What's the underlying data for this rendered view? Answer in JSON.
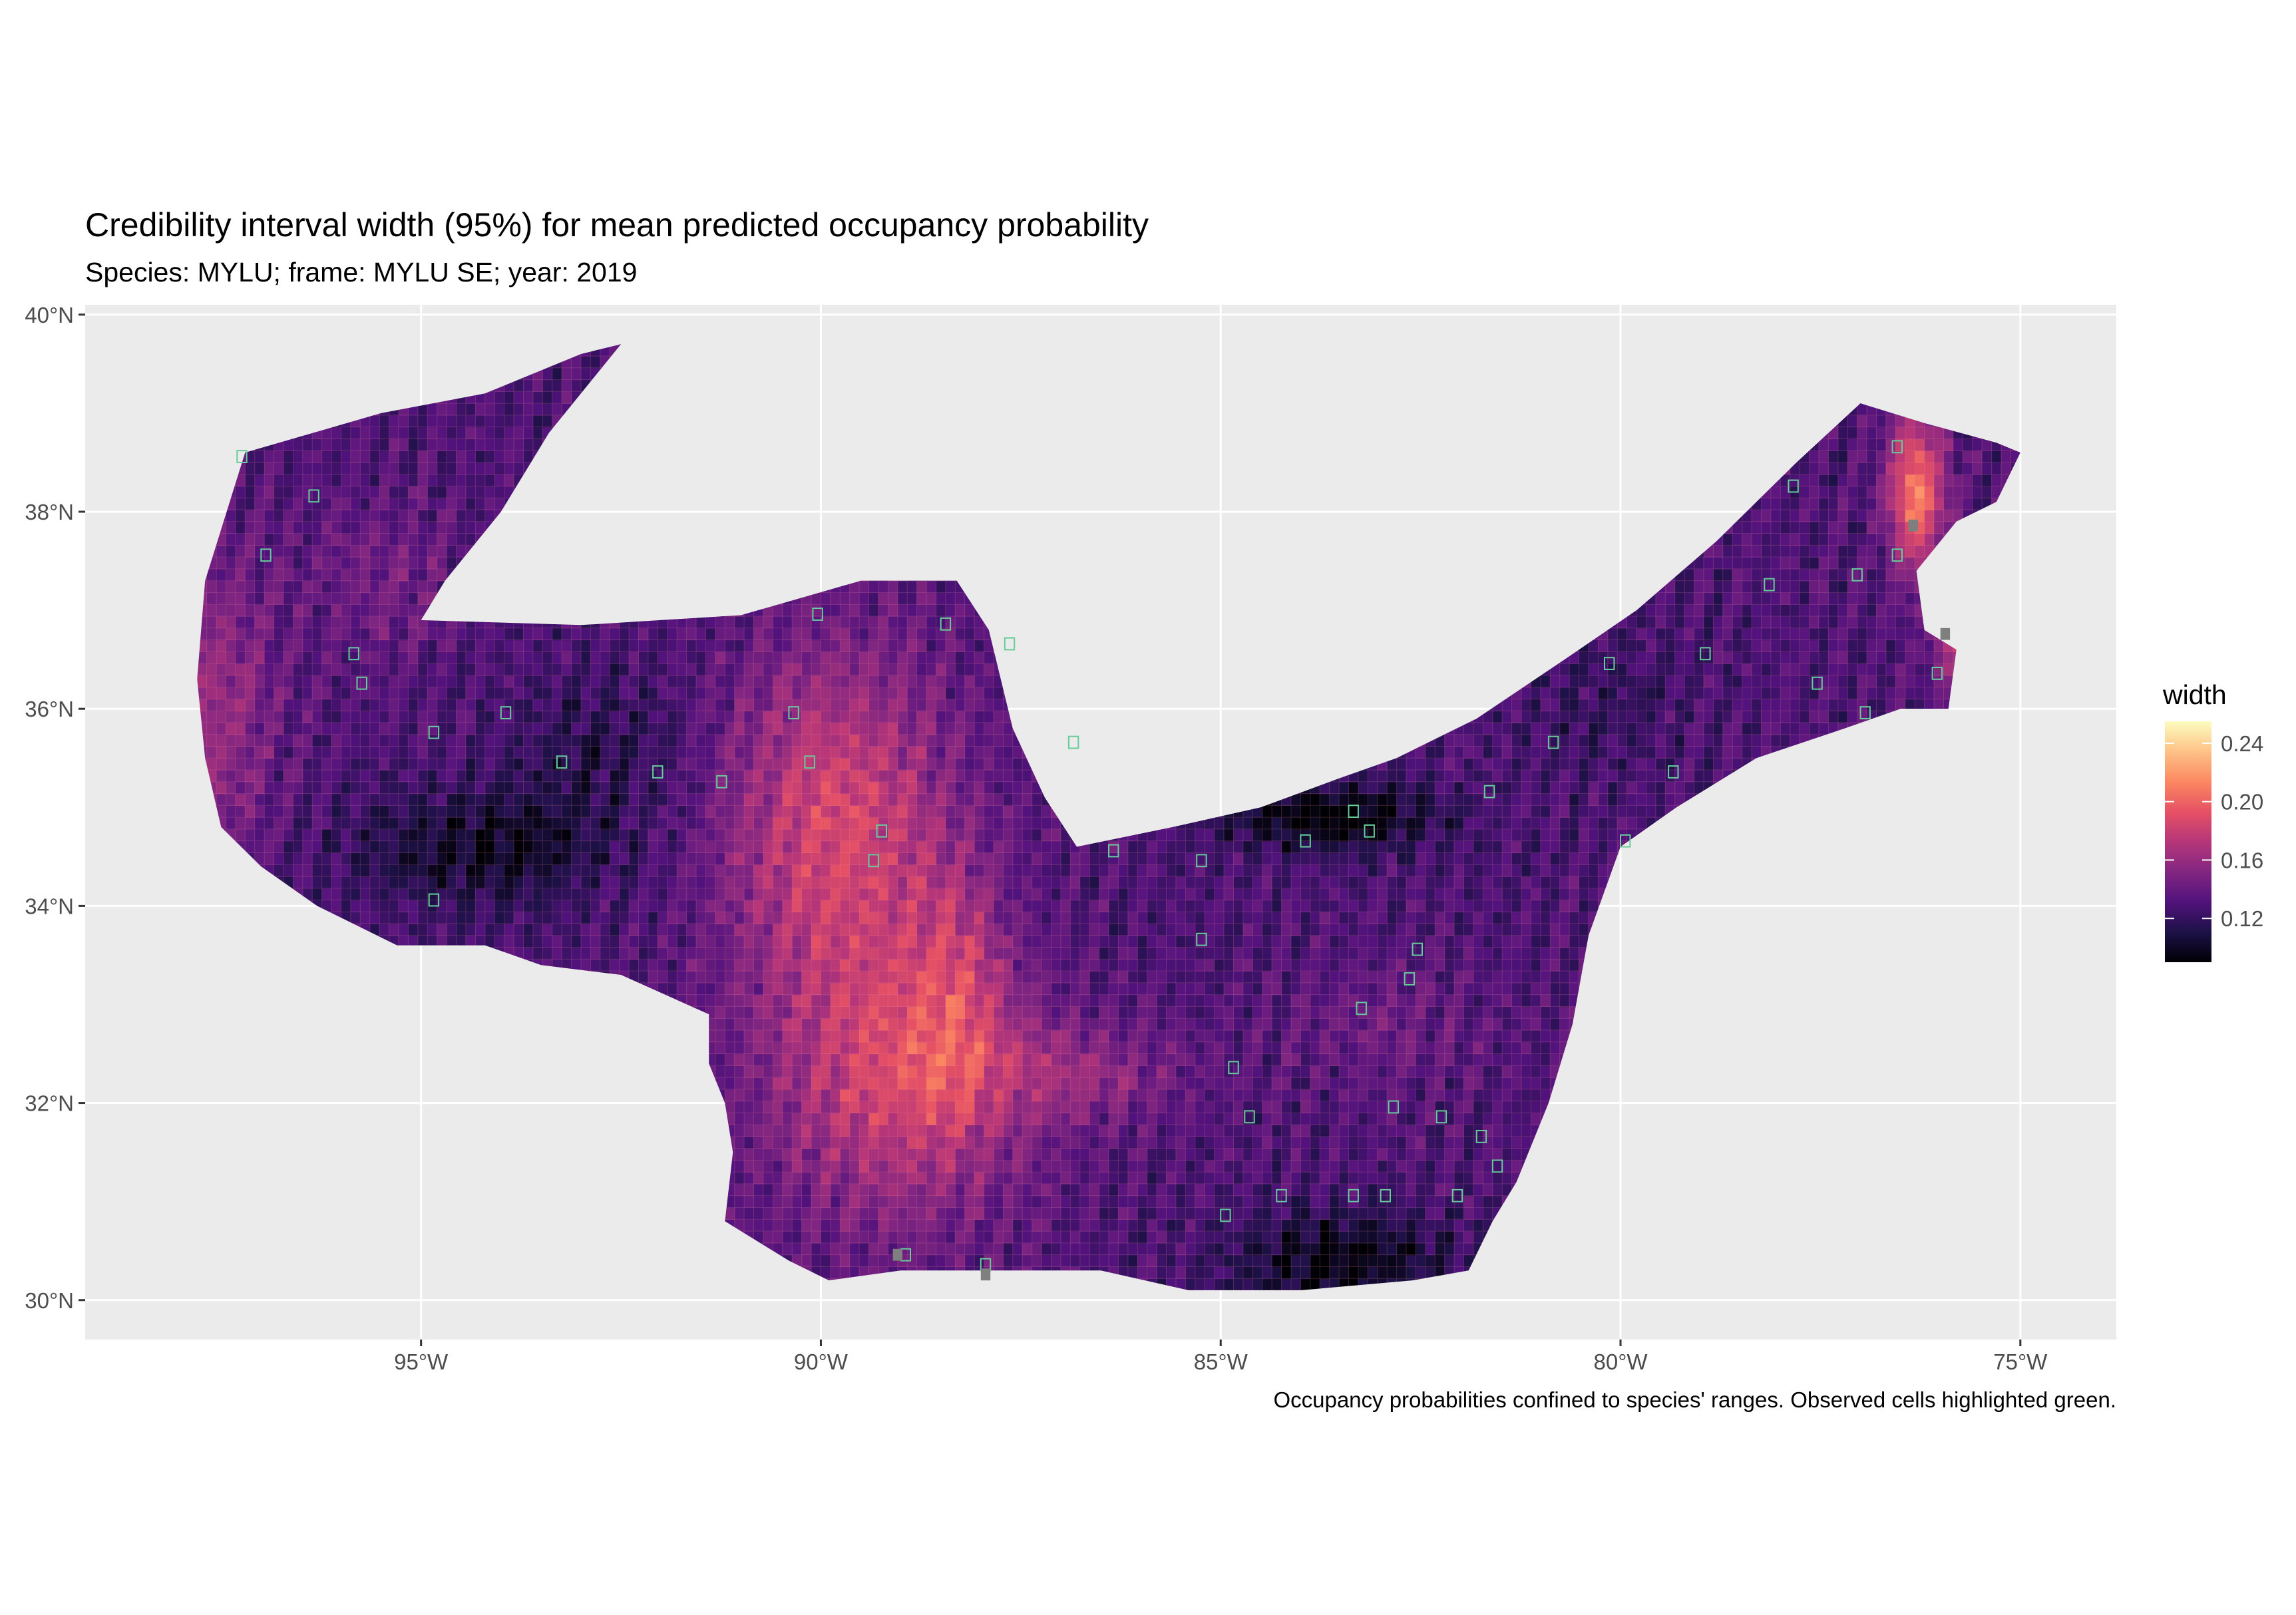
{
  "title": "Credibility interval width (95%) for mean predicted occupancy probability",
  "subtitle": "Species: MYLU; frame: MYLU SE; year: 2019",
  "caption": "Occupancy probabilities confined to species' ranges. Observed cells highlighted green.",
  "colors": {
    "panel_background": "#ebebeb",
    "grid_line": "#ffffff",
    "observed_cell_outline": "#66cc99",
    "missing_cell": "#7f7f7f",
    "palette": [
      "#000004",
      "#1d1147",
      "#51127c",
      "#822681",
      "#b63679",
      "#e65164",
      "#fb8861",
      "#fec287",
      "#fcfdbf"
    ]
  },
  "map": {
    "type": "raster-grid",
    "x_axis": {
      "label": "",
      "range_deg": [
        -99.2,
        -73.8
      ],
      "ticks": [
        {
          "value": -95,
          "label": "95°W"
        },
        {
          "value": -90,
          "label": "90°W"
        },
        {
          "value": -85,
          "label": "85°W"
        },
        {
          "value": -80,
          "label": "80°W"
        },
        {
          "value": -75,
          "label": "75°W"
        }
      ]
    },
    "y_axis": {
      "label": "",
      "range_deg": [
        29.6,
        40.1
      ],
      "ticks": [
        {
          "value": 30,
          "label": "30°N"
        },
        {
          "value": 32,
          "label": "32°N"
        },
        {
          "value": 34,
          "label": "34°N"
        },
        {
          "value": 36,
          "label": "36°N"
        },
        {
          "value": 38,
          "label": "38°N"
        },
        {
          "value": 40,
          "label": "40°N"
        }
      ]
    },
    "region_polygon_lonlat": [
      [
        -97.2,
        38.6
      ],
      [
        -95.5,
        39.0
      ],
      [
        -94.2,
        39.2
      ],
      [
        -93.0,
        39.6
      ],
      [
        -92.5,
        39.7
      ],
      [
        -93.4,
        38.8
      ],
      [
        -94.0,
        38.0
      ],
      [
        -94.7,
        37.3
      ],
      [
        -95.0,
        36.9
      ],
      [
        -93.0,
        36.85
      ],
      [
        -91.0,
        36.95
      ],
      [
        -89.5,
        37.3
      ],
      [
        -88.3,
        37.3
      ],
      [
        -87.9,
        36.8
      ],
      [
        -87.6,
        35.8
      ],
      [
        -87.2,
        35.1
      ],
      [
        -86.8,
        34.6
      ],
      [
        -85.6,
        34.8
      ],
      [
        -84.5,
        35.0
      ],
      [
        -83.5,
        35.3
      ],
      [
        -82.8,
        35.5
      ],
      [
        -81.8,
        35.9
      ],
      [
        -80.7,
        36.5
      ],
      [
        -79.8,
        37.0
      ],
      [
        -78.8,
        37.7
      ],
      [
        -77.8,
        38.5
      ],
      [
        -77.0,
        39.1
      ],
      [
        -76.2,
        38.9
      ],
      [
        -75.3,
        38.7
      ],
      [
        -75.0,
        38.6
      ],
      [
        -75.3,
        38.1
      ],
      [
        -75.8,
        37.9
      ],
      [
        -76.3,
        37.4
      ],
      [
        -76.2,
        36.8
      ],
      [
        -75.8,
        36.6
      ],
      [
        -75.9,
        36.0
      ],
      [
        -76.5,
        36.0
      ],
      [
        -77.2,
        35.8
      ],
      [
        -78.3,
        35.5
      ],
      [
        -79.3,
        35.0
      ],
      [
        -80.0,
        34.6
      ],
      [
        -80.4,
        33.7
      ],
      [
        -80.6,
        32.8
      ],
      [
        -80.9,
        32.0
      ],
      [
        -81.3,
        31.2
      ],
      [
        -81.6,
        30.8
      ],
      [
        -81.9,
        30.3
      ],
      [
        -82.6,
        30.2
      ],
      [
        -84.0,
        30.1
      ],
      [
        -85.4,
        30.1
      ],
      [
        -86.5,
        30.3
      ],
      [
        -87.8,
        30.3
      ],
      [
        -89.0,
        30.3
      ],
      [
        -89.9,
        30.2
      ],
      [
        -90.4,
        30.4
      ],
      [
        -91.2,
        30.8
      ],
      [
        -91.1,
        31.5
      ],
      [
        -91.2,
        32.0
      ],
      [
        -91.4,
        32.4
      ],
      [
        -91.4,
        32.9
      ],
      [
        -92.5,
        33.3
      ],
      [
        -93.5,
        33.4
      ],
      [
        -94.2,
        33.6
      ],
      [
        -95.3,
        33.6
      ],
      [
        -96.3,
        34.0
      ],
      [
        -97.0,
        34.4
      ],
      [
        -97.5,
        34.8
      ],
      [
        -97.7,
        35.5
      ],
      [
        -97.8,
        36.3
      ],
      [
        -97.7,
        37.3
      ]
    ],
    "observed_cells_lonlat": [
      [
        -97.3,
        38.5
      ],
      [
        -96.4,
        38.1
      ],
      [
        -97.0,
        37.5
      ],
      [
        -95.9,
        36.5
      ],
      [
        -95.8,
        36.2
      ],
      [
        -94.9,
        35.7
      ],
      [
        -94.0,
        35.9
      ],
      [
        -93.3,
        35.4
      ],
      [
        -92.1,
        35.3
      ],
      [
        -91.3,
        35.2
      ],
      [
        -90.4,
        35.9
      ],
      [
        -90.2,
        35.4
      ],
      [
        -89.3,
        34.7
      ],
      [
        -89.4,
        34.4
      ],
      [
        -94.9,
        34.0
      ],
      [
        -90.1,
        36.9
      ],
      [
        -88.5,
        36.8
      ],
      [
        -87.7,
        36.6
      ],
      [
        -86.9,
        35.6
      ],
      [
        -86.4,
        34.5
      ],
      [
        -83.4,
        34.9
      ],
      [
        -83.2,
        34.7
      ],
      [
        -84.0,
        34.6
      ],
      [
        -85.3,
        34.4
      ],
      [
        -81.7,
        35.1
      ],
      [
        -80.9,
        35.6
      ],
      [
        -80.2,
        36.4
      ],
      [
        -79.0,
        36.5
      ],
      [
        -77.6,
        36.2
      ],
      [
        -76.6,
        37.5
      ],
      [
        -77.1,
        37.3
      ],
      [
        -78.2,
        37.2
      ],
      [
        -76.1,
        36.3
      ],
      [
        -77.0,
        35.9
      ],
      [
        -79.4,
        35.3
      ],
      [
        -80.0,
        34.6
      ],
      [
        -82.6,
        33.5
      ],
      [
        -82.7,
        33.2
      ],
      [
        -83.3,
        32.9
      ],
      [
        -84.9,
        32.3
      ],
      [
        -84.7,
        31.8
      ],
      [
        -82.9,
        31.9
      ],
      [
        -82.3,
        31.8
      ],
      [
        -81.8,
        31.6
      ],
      [
        -82.1,
        31.0
      ],
      [
        -83.0,
        31.0
      ],
      [
        -83.4,
        31.0
      ],
      [
        -84.3,
        31.0
      ],
      [
        -85.0,
        30.8
      ],
      [
        -81.6,
        31.3
      ],
      [
        -85.3,
        33.6
      ],
      [
        -88.0,
        30.3
      ],
      [
        -89.0,
        30.4
      ],
      [
        -76.6,
        38.6
      ],
      [
        -77.9,
        38.2
      ]
    ],
    "missing_cells_lonlat": [
      [
        -89.1,
        30.4
      ],
      [
        -88.0,
        30.2
      ],
      [
        -76.4,
        37.8
      ],
      [
        -76.0,
        36.7
      ]
    ]
  },
  "legend": {
    "title": "width",
    "min": 0.09,
    "max": 0.255,
    "ticks": [
      {
        "value": 0.12,
        "label": "0.12"
      },
      {
        "value": 0.16,
        "label": "0.16"
      },
      {
        "value": 0.2,
        "label": "0.20"
      },
      {
        "value": 0.24,
        "label": "0.24"
      }
    ]
  }
}
